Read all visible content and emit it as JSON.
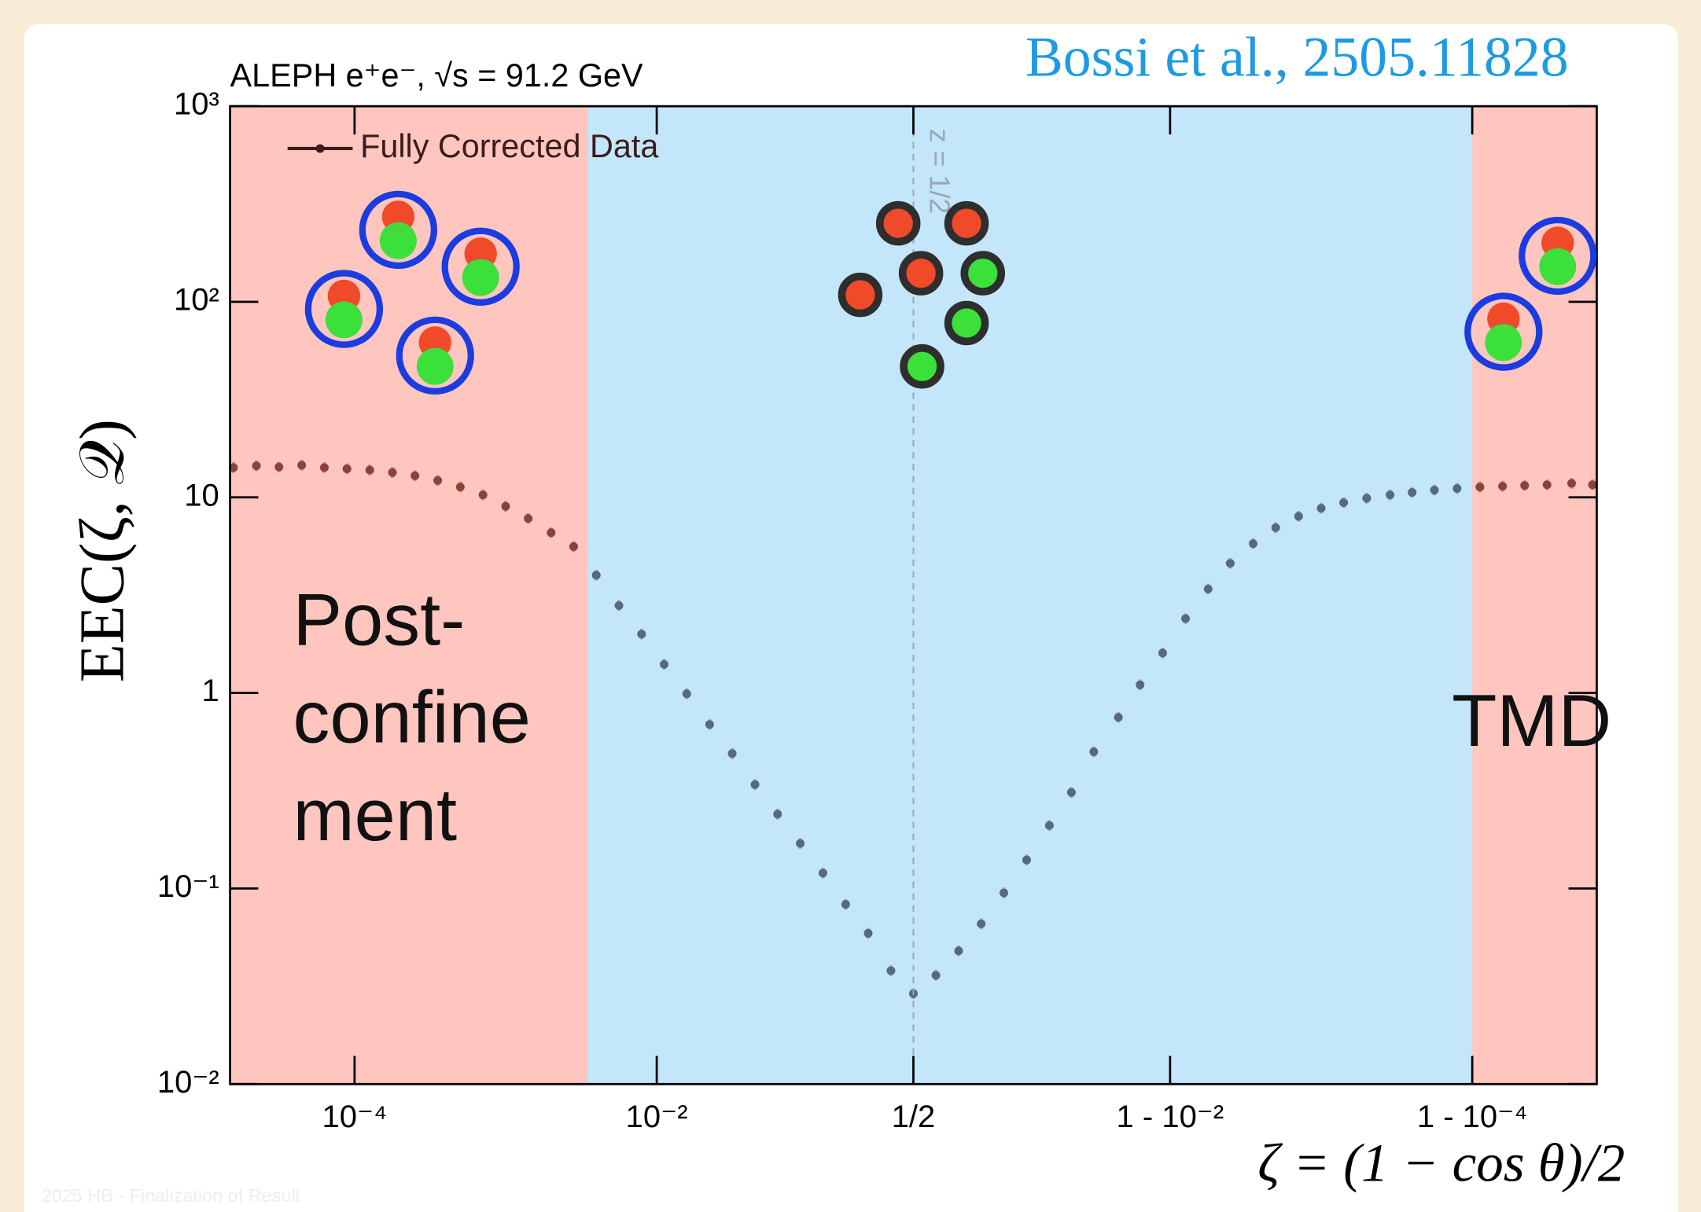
{
  "chart_data": {
    "type": "scatter",
    "title": "ALEPH e⁺e⁻, √s = 91.2 GeV",
    "credit": "Bossi et al., 2505.11828",
    "xlabel": "ζ = (1 − cos θ)/2",
    "ylabel": "EEC(ζ, 𝒬)",
    "footer": "2025 HB - Finalization of Result",
    "xscale": "symlog-half",
    "yscale": "log",
    "xlim": [
      1.5e-05,
      0.999985
    ],
    "ylim": [
      0.01,
      1000
    ],
    "xticks": [
      {
        "value": 0.0001,
        "label": "10⁻⁴"
      },
      {
        "value": 0.01,
        "label": "10⁻²"
      },
      {
        "value": 0.5,
        "label": "1/2"
      },
      {
        "value": 0.99,
        "label": "1 - 10⁻²"
      },
      {
        "value": 0.9999,
        "label": "1 - 10⁻⁴"
      }
    ],
    "yticks": [
      {
        "value": 0.01,
        "label": "10⁻²"
      },
      {
        "value": 0.1,
        "label": "10⁻¹"
      },
      1,
      10,
      {
        "value": 100,
        "label": "10²"
      },
      {
        "value": 1000,
        "label": "10³"
      }
    ],
    "legend": "upper left",
    "grid": false,
    "regions": [
      {
        "x0": 1.5e-05,
        "x1": 0.0035,
        "color": "rgba(252,120,100,0.42)"
      },
      {
        "x0": 0.0035,
        "x1": 0.9999,
        "color": "rgba(125,200,245,0.45)"
      },
      {
        "x0": 0.9999,
        "x1": 0.999985,
        "color": "rgba(252,120,100,0.42)"
      }
    ],
    "vline": {
      "x": 0.5,
      "label": "z = 1/2"
    },
    "annotations": [
      {
        "lines": [
          "Post-",
          "confine",
          "ment"
        ]
      },
      {
        "lines": [
          "TMD"
        ]
      }
    ],
    "series": [
      {
        "name": "Fully Corrected Data",
        "color": "#3a1c1c",
        "x": [
          1.58e-05,
          2.24e-05,
          3.16e-05,
          4.47e-05,
          6.31e-05,
          8.91e-05,
          0.000126,
          0.000178,
          0.000251,
          0.000355,
          0.000501,
          0.000708,
          0.001,
          0.00141,
          0.002,
          0.00282,
          0.00398,
          0.00562,
          0.00794,
          0.0112,
          0.0158,
          0.0224,
          0.0316,
          0.0447,
          0.0631,
          0.0891,
          0.126,
          0.178,
          0.251,
          0.355,
          0.5,
          0.645,
          0.749,
          0.822,
          0.874,
          0.911,
          0.937,
          0.955,
          0.968,
          0.978,
          0.9842,
          0.9888,
          0.9921,
          0.9944,
          0.996,
          0.99718,
          0.998,
          0.99859,
          0.999,
          0.99929,
          0.9995,
          0.99965,
          0.99975,
          0.999822,
          0.999874,
          0.999911,
          0.999937,
          0.999955,
          0.999968,
          0.999978,
          0.999984
        ],
        "values": [
          14.2,
          14.5,
          14.3,
          14.6,
          14.2,
          14.0,
          13.8,
          13.4,
          12.9,
          12.2,
          11.3,
          10.3,
          9.0,
          7.8,
          6.6,
          5.6,
          4.0,
          2.8,
          2.0,
          1.4,
          0.99,
          0.69,
          0.49,
          0.34,
          0.24,
          0.17,
          0.12,
          0.083,
          0.059,
          0.038,
          0.029,
          0.036,
          0.048,
          0.066,
          0.095,
          0.14,
          0.21,
          0.31,
          0.5,
          0.75,
          1.1,
          1.6,
          2.4,
          3.4,
          4.6,
          5.8,
          7.0,
          8.0,
          8.8,
          9.4,
          9.9,
          10.3,
          10.6,
          10.9,
          11.1,
          11.3,
          11.4,
          11.5,
          11.6,
          11.8,
          11.6
        ]
      }
    ]
  }
}
